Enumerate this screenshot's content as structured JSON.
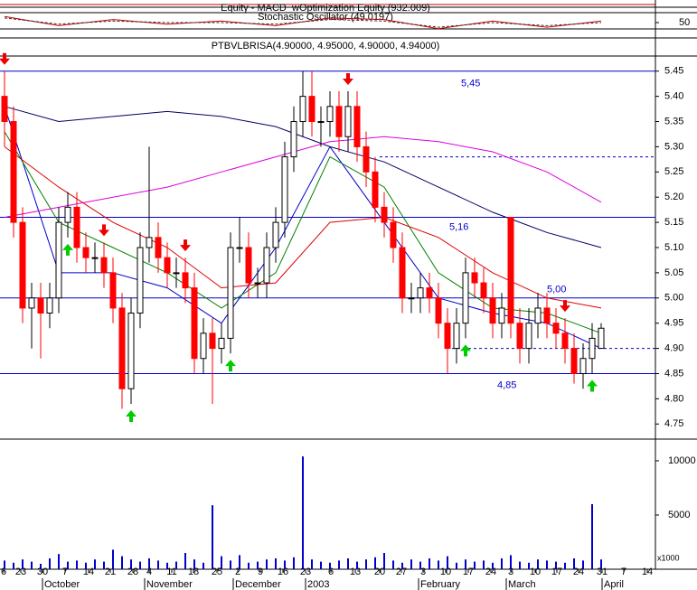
{
  "chart_data": {
    "type": "candlestick",
    "title": "PTBVLBRISA(4.90000, 4.95000, 4.90000, 4.94000)",
    "xlim": [
      -0.5,
      72
    ],
    "xticks": [
      {
        "value": -0.1,
        "label": "6"
      },
      {
        "value": 1.8,
        "label": "23"
      },
      {
        "value": 4.2,
        "label": "30"
      },
      {
        "value": 6.7,
        "label": "7"
      },
      {
        "value": 9.3,
        "label": "14"
      },
      {
        "value": 11.7,
        "label": "21"
      },
      {
        "value": 14.2,
        "label": "28"
      },
      {
        "value": 16.0,
        "label": "4"
      },
      {
        "value": 18.5,
        "label": "11"
      },
      {
        "value": 20.9,
        "label": "18"
      },
      {
        "value": 23.5,
        "label": "25"
      },
      {
        "value": 25.8,
        "label": "2"
      },
      {
        "value": 28.3,
        "label": "9"
      },
      {
        "value": 30.8,
        "label": "16"
      },
      {
        "value": 33.3,
        "label": "23"
      },
      {
        "value": 36.1,
        "label": "6"
      },
      {
        "value": 38.8,
        "label": "13"
      },
      {
        "value": 41.5,
        "label": "20"
      },
      {
        "value": 43.9,
        "label": "27"
      },
      {
        "value": 46.3,
        "label": "3"
      },
      {
        "value": 48.8,
        "label": "10"
      },
      {
        "value": 51.3,
        "label": "17"
      },
      {
        "value": 53.8,
        "label": "24"
      },
      {
        "value": 56.0,
        "label": "3"
      },
      {
        "value": 58.7,
        "label": "10"
      },
      {
        "value": 61.1,
        "label": "17"
      },
      {
        "value": 63.5,
        "label": "24"
      },
      {
        "value": 66.1,
        "label": "31"
      },
      {
        "value": 68.5,
        "label": "7"
      },
      {
        "value": 71.1,
        "label": "14"
      }
    ],
    "month_ticks": [
      {
        "value": 4.2,
        "label": "October"
      },
      {
        "value": 15.5,
        "label": "November"
      },
      {
        "value": 25.3,
        "label": "December"
      },
      {
        "value": 33.3,
        "label": "2003"
      },
      {
        "value": 45.8,
        "label": "February"
      },
      {
        "value": 55.5,
        "label": "March"
      },
      {
        "value": 66.1,
        "label": "April"
      }
    ],
    "open": [
      5.4,
      5.35,
      5.15,
      4.98,
      5.0,
      4.97,
      5.0,
      5.15,
      5.18,
      5.1,
      5.08,
      5.08,
      5.05,
      4.98,
      4.82,
      4.97,
      5.1,
      5.12,
      5.08,
      5.05,
      5.05,
      5.02,
      4.88,
      4.93,
      4.9,
      4.92,
      5.1,
      5.1,
      5.03,
      5.03,
      5.1,
      5.15,
      5.28,
      5.35,
      5.4,
      5.35,
      5.35,
      5.38,
      5.32,
      5.38,
      5.3,
      5.25,
      5.18,
      5.15,
      5.1,
      5.0,
      5.0,
      5.02,
      5.0,
      4.95,
      4.9,
      4.95,
      5.05,
      5.03,
      5.0,
      4.95,
      5.16,
      4.95,
      4.9,
      4.95,
      4.98,
      4.95,
      4.93,
      4.9,
      4.85,
      4.88,
      4.9
    ],
    "high": [
      5.45,
      5.38,
      5.18,
      5.03,
      5.03,
      5.03,
      5.18,
      5.21,
      5.21,
      5.13,
      5.11,
      5.11,
      5.08,
      5.01,
      5.0,
      5.13,
      5.3,
      5.15,
      5.11,
      5.08,
      5.08,
      5.05,
      4.96,
      4.96,
      4.95,
      5.13,
      5.16,
      5.13,
      5.06,
      5.13,
      5.18,
      5.31,
      5.38,
      5.45,
      5.45,
      5.38,
      5.41,
      5.41,
      5.41,
      5.41,
      5.33,
      5.28,
      5.21,
      5.18,
      5.13,
      5.03,
      5.05,
      5.05,
      5.03,
      4.98,
      4.98,
      5.08,
      5.08,
      5.06,
      5.03,
      5.01,
      5.16,
      4.98,
      4.98,
      5.01,
      5.01,
      4.98,
      4.96,
      4.93,
      4.91,
      4.95,
      4.95
    ],
    "low": [
      5.3,
      5.12,
      4.95,
      4.9,
      4.88,
      4.94,
      4.97,
      5.12,
      5.07,
      5.05,
      5.05,
      5.02,
      4.95,
      4.78,
      4.79,
      4.94,
      5.07,
      5.05,
      5.02,
      5.02,
      4.99,
      4.85,
      4.85,
      4.79,
      4.87,
      4.89,
      5.07,
      5.0,
      5.0,
      5.0,
      5.07,
      5.12,
      5.25,
      5.32,
      5.32,
      5.3,
      5.32,
      5.29,
      5.29,
      5.27,
      5.22,
      5.15,
      5.12,
      5.07,
      4.97,
      4.97,
      4.97,
      4.97,
      4.92,
      4.85,
      4.87,
      4.92,
      5.0,
      4.97,
      4.92,
      4.92,
      4.92,
      4.87,
      4.87,
      4.92,
      4.92,
      4.9,
      4.87,
      4.83,
      4.82,
      4.85,
      4.9
    ],
    "close": [
      5.35,
      5.15,
      4.98,
      5.0,
      4.97,
      5.0,
      5.15,
      5.18,
      5.1,
      5.08,
      5.08,
      5.05,
      4.98,
      4.82,
      4.97,
      5.1,
      5.12,
      5.08,
      5.05,
      5.05,
      5.02,
      4.88,
      4.93,
      4.9,
      4.92,
      5.1,
      5.1,
      5.03,
      5.03,
      5.1,
      5.15,
      5.28,
      5.35,
      5.4,
      5.35,
      5.35,
      5.38,
      5.32,
      5.38,
      5.3,
      5.25,
      5.18,
      5.15,
      5.1,
      5.0,
      5.0,
      5.02,
      5.0,
      4.95,
      4.9,
      4.95,
      5.05,
      5.03,
      5.0,
      4.95,
      4.98,
      4.95,
      4.9,
      4.95,
      4.98,
      4.95,
      4.93,
      4.9,
      4.85,
      4.88,
      4.92,
      4.94
    ],
    "up_color": "#ffffff",
    "down_color": "#ff0000",
    "ylim": [
      4.72,
      5.48
    ],
    "yticks": [
      4.75,
      {
        "value": 4.8,
        "label": "4.80"
      },
      4.85,
      {
        "value": 4.9,
        "label": "4.90"
      },
      4.95,
      {
        "value": 5,
        "label": "5.00"
      },
      5.05,
      {
        "value": 5.1,
        "label": "5.10"
      },
      5.15,
      {
        "value": 5.2,
        "label": "5.20"
      },
      5.25,
      {
        "value": 5.3,
        "label": "5.30"
      },
      5.35,
      {
        "value": 5.4,
        "label": "5.40"
      },
      5.45
    ],
    "moving_averages": {
      "x": [
        0,
        6,
        12,
        18,
        24,
        30,
        36,
        42,
        48,
        54,
        60,
        66
      ],
      "series": [
        {
          "color": "#0000cc",
          "values": [
            5.38,
            5.05,
            5.05,
            5.02,
            4.95,
            5.1,
            5.3,
            5.15,
            5.0,
            4.97,
            4.95,
            4.9
          ]
        },
        {
          "color": "#008000",
          "values": [
            5.33,
            5.15,
            5.1,
            5.05,
            4.98,
            5.05,
            5.28,
            5.22,
            5.05,
            4.98,
            4.97,
            4.93
          ]
        },
        {
          "color": "#dd0000",
          "values": [
            5.3,
            5.22,
            5.15,
            5.1,
            5.02,
            5.03,
            5.15,
            5.16,
            5.12,
            5.05,
            5.0,
            4.98
          ]
        },
        {
          "color": "#000066",
          "values": [
            5.38,
            5.35,
            5.36,
            5.37,
            5.36,
            5.34,
            5.3,
            5.27,
            5.22,
            5.17,
            5.13,
            5.1
          ]
        },
        {
          "color": "#dd00dd",
          "values": [
            5.16,
            5.18,
            5.2,
            5.22,
            5.25,
            5.28,
            5.31,
            5.32,
            5.31,
            5.29,
            5.25,
            5.19
          ]
        }
      ]
    },
    "level_color": "#0000cc",
    "levels": [
      {
        "value": 5.45,
        "label": "5,45"
      },
      {
        "value": 5.16,
        "label": "5,16"
      },
      {
        "value": 5.0,
        "label": "5,00"
      },
      {
        "value": 4.85,
        "label": "4,85"
      }
    ],
    "dashed_levels": [
      {
        "value": 5.28,
        "from": 41.5
      },
      {
        "value": 4.9,
        "from": 49.5
      }
    ],
    "sell_signals": [
      0,
      11,
      20,
      38,
      62
    ],
    "buy_signals": [
      7,
      14,
      25,
      51,
      65
    ],
    "volume": {
      "color": "#0000cc",
      "unit_label": "x1000",
      "ylim": [
        0,
        12000
      ],
      "yticks": [
        5000,
        10000
      ],
      "values": [
        800,
        600,
        900,
        700,
        500,
        1000,
        1400,
        700,
        800,
        600,
        900,
        700,
        1800,
        1200,
        900,
        700,
        1000,
        800,
        600,
        700,
        1500,
        900,
        600,
        5900,
        1200,
        800,
        1300,
        600,
        700,
        900,
        1000,
        800,
        1100,
        10400,
        900,
        700,
        600,
        800,
        1000,
        700,
        900,
        1100,
        1500,
        800,
        600,
        900,
        700,
        1000,
        800,
        1200,
        600,
        900,
        700,
        800,
        600,
        1000,
        1300,
        700,
        600,
        900,
        800,
        700,
        600,
        1000,
        800,
        6000,
        900
      ]
    },
    "oscillator": {
      "labels": [
        "Equity - MACD_wOptimization Equity (932.009)",
        "Stochastic Oscillator (49.0197)"
      ],
      "ylim": [
        0,
        100
      ],
      "yticks": [
        50
      ],
      "x": [
        0,
        6,
        12,
        18,
        24,
        30,
        36,
        42,
        48,
        54,
        60,
        66
      ],
      "series": [
        {
          "color": "#cc0000",
          "values": [
            70,
            40,
            60,
            45,
            55,
            40,
            65,
            60,
            30,
            55,
            35,
            55
          ]
        },
        {
          "color": "#333333",
          "values": [
            65,
            45,
            55,
            50,
            50,
            45,
            60,
            55,
            35,
            50,
            40,
            50
          ]
        }
      ]
    }
  }
}
